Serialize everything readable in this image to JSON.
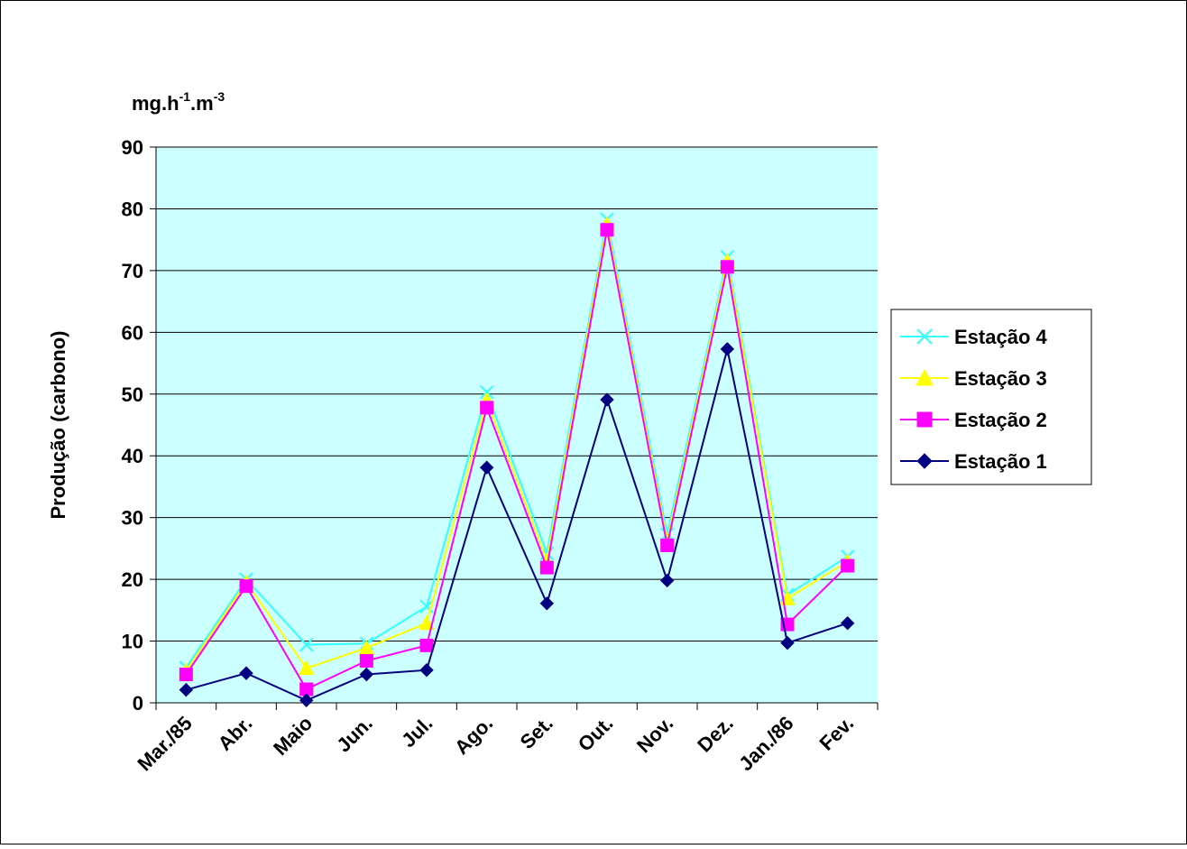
{
  "chart_data": {
    "type": "line",
    "title": "",
    "unit_label": "mg.h-1.m-3",
    "unit_label_parts": {
      "base1": "mg.h",
      "exp1": "-1",
      "base2": ".m",
      "exp2": "-3"
    },
    "ylabel": "Produção (carbono)",
    "xlabel": "",
    "ylim": [
      0,
      90
    ],
    "yticks": [
      0,
      10,
      20,
      30,
      40,
      50,
      60,
      70,
      80,
      90
    ],
    "grid": true,
    "legend_position": "right",
    "plot_background": "#ccffff",
    "categories": [
      "Mar./85",
      "Abr.",
      "Maio",
      "Jun.",
      "Jul.",
      "Ago.",
      "Set.",
      "Out.",
      "Nov.",
      "Dez.",
      "Jan./86",
      "Fev."
    ],
    "series": [
      {
        "name": "Estação 1",
        "marker": "diamond",
        "color": "#000080",
        "values": [
          2.1,
          4.8,
          0.4,
          4.6,
          5.3,
          38.1,
          16.1,
          49.1,
          19.8,
          57.3,
          9.7,
          12.9
        ]
      },
      {
        "name": "Estação 2",
        "marker": "square",
        "color": "#ff00ff",
        "values": [
          4.6,
          18.9,
          2.2,
          6.8,
          9.3,
          47.8,
          21.9,
          76.6,
          25.5,
          70.6,
          12.7,
          22.2
        ]
      },
      {
        "name": "Estação 3",
        "marker": "triangle",
        "color": "#ffff00",
        "values": [
          5.2,
          19.5,
          5.6,
          8.9,
          12.9,
          49.0,
          23.0,
          77.5,
          26.2,
          71.5,
          16.9,
          22.9
        ]
      },
      {
        "name": "Estação 4",
        "marker": "x",
        "color": "#33ffff",
        "values": [
          5.7,
          20.0,
          9.4,
          9.6,
          15.6,
          50.3,
          24.2,
          78.3,
          27.3,
          72.2,
          17.5,
          23.7
        ]
      }
    ],
    "legend_order": [
      3,
      2,
      1,
      0
    ]
  }
}
